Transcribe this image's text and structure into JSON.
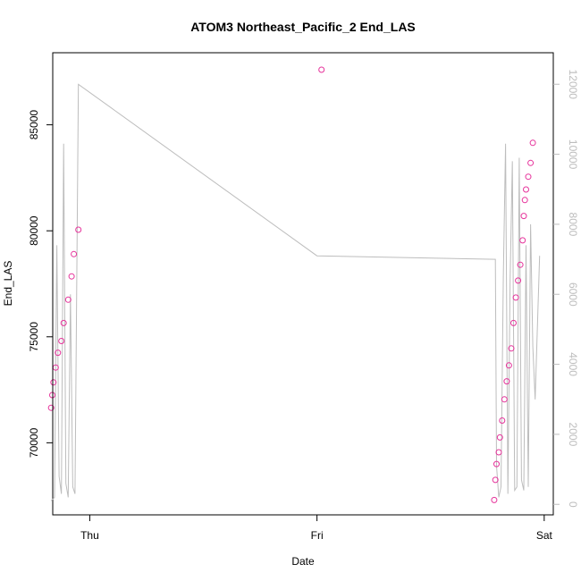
{
  "chart_data": {
    "type": "scatter",
    "title": "ATOM3 Northeast_Pacific_2 End_LAS",
    "xlabel": "Date",
    "ylabel": "End_LAS",
    "x_ticks": [
      "Thu",
      "Fri",
      "Sat"
    ],
    "y_ticks": [
      "70000",
      "75000",
      "80000",
      "85000"
    ],
    "y2_ticks": [
      "0",
      "2000",
      "4000",
      "6000",
      "8000",
      "10000",
      "12000"
    ],
    "ylim": [
      66600,
      88400
    ],
    "y2lim": [
      -300,
      12900
    ],
    "xlim_days": [
      -0.163,
      2.04
    ],
    "grid": false,
    "colors": {
      "points": "#e6339b",
      "line": "#bdbdbd",
      "axis": "#000000",
      "right_axis": "#bdbdbd"
    },
    "series": [
      {
        "kind": "points",
        "axis": "left",
        "x_days": [
          -0.17,
          -0.165,
          -0.16,
          -0.15,
          -0.14,
          -0.125,
          -0.115,
          -0.095,
          -0.08,
          -0.07,
          -0.05,
          1.02,
          1.78,
          1.785,
          1.79,
          1.8,
          1.805,
          1.815,
          1.825,
          1.835,
          1.845,
          1.855,
          1.865,
          1.875,
          1.885,
          1.895,
          1.905,
          1.91,
          1.915,
          1.92,
          1.93,
          1.94,
          1.95
        ],
        "y": [
          71650,
          72250,
          72850,
          73550,
          74250,
          74800,
          75650,
          76750,
          77850,
          78900,
          80050,
          87600,
          67300,
          68250,
          69000,
          69550,
          70250,
          71050,
          72050,
          72900,
          73650,
          74450,
          75650,
          76850,
          77650,
          78400,
          79550,
          80700,
          81450,
          81950,
          82550,
          83200,
          84150
        ]
      },
      {
        "kind": "line",
        "axis": "right",
        "x_days": [
          -0.17,
          -0.155,
          -0.145,
          -0.135,
          -0.125,
          -0.115,
          -0.105,
          -0.095,
          -0.085,
          -0.075,
          -0.065,
          -0.05,
          1.0,
          1.785,
          1.79,
          1.8,
          1.81,
          1.82,
          1.83,
          1.84,
          1.85,
          1.86,
          1.87,
          1.88,
          1.89,
          1.9,
          1.91,
          1.92,
          1.93,
          1.94,
          1.95,
          1.96,
          1.98
        ],
        "y": [
          100,
          200,
          7400,
          800,
          300,
          10300,
          600,
          200,
          6000,
          500,
          300,
          12000,
          7100,
          7000,
          1100,
          200,
          500,
          6500,
          10300,
          300,
          6400,
          9800,
          400,
          500,
          9900,
          700,
          400,
          7400,
          500,
          8000,
          4500,
          3000,
          7100
        ]
      }
    ]
  }
}
